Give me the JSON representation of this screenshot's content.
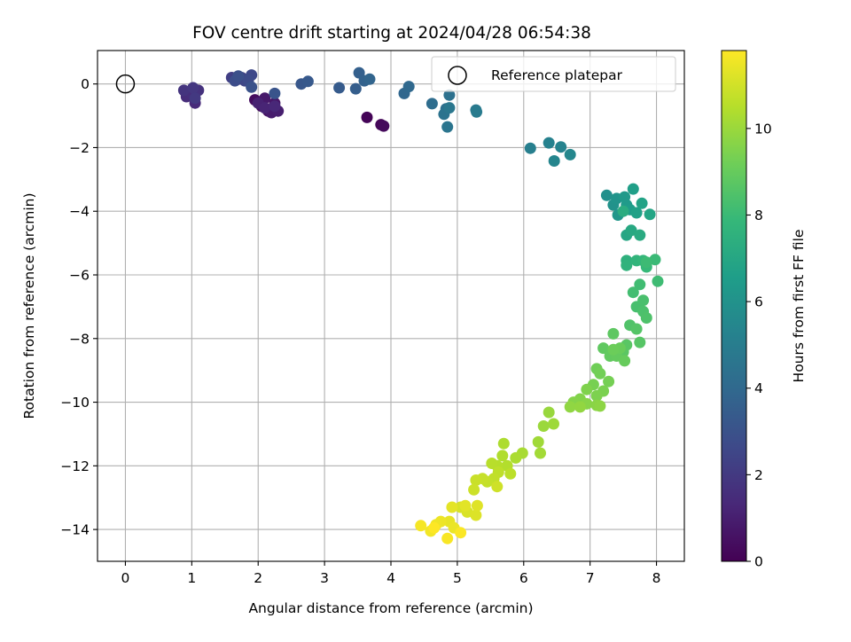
{
  "chart_data": {
    "type": "scatter",
    "title": "FOV centre drift starting at 2024/04/28 06:54:38",
    "xlabel": "Angular distance from reference (arcmin)",
    "ylabel": "Rotation from reference (arcmin)",
    "xlim": [
      -0.42,
      8.42
    ],
    "ylim": [
      -15.0,
      1.05
    ],
    "xticks": [
      0,
      1,
      2,
      3,
      4,
      5,
      6,
      7,
      8
    ],
    "yticks": [
      0,
      -2,
      -4,
      -6,
      -8,
      -10,
      -12,
      -14
    ],
    "xtick_labels": [
      "0",
      "1",
      "2",
      "3",
      "4",
      "5",
      "6",
      "7",
      "8"
    ],
    "ytick_labels": [
      "0",
      "−2",
      "−4",
      "−6",
      "−8",
      "−10",
      "−12",
      "−14"
    ],
    "grid": true,
    "legend": {
      "position": "upper-right",
      "entries": [
        "Reference platepar"
      ]
    },
    "reference_point": {
      "x": 0,
      "y": 0,
      "label": "Reference platepar"
    },
    "colorbar": {
      "label": "Hours from first FF file",
      "range": [
        0,
        11.8
      ],
      "ticks": [
        0,
        2,
        4,
        6,
        8,
        10
      ],
      "tick_labels": [
        "0",
        "2",
        "4",
        "6",
        "8",
        "10"
      ],
      "colormap": "viridis",
      "colors": [
        "#440154",
        "#482878",
        "#3e4989",
        "#31688e",
        "#26828e",
        "#1f9e89",
        "#35b779",
        "#6ece58",
        "#b5de2b",
        "#fde725"
      ]
    },
    "series": [
      {
        "values": [
          [
            3.64,
            -1.05,
            0.1
          ],
          [
            3.85,
            -1.28,
            0.2
          ],
          [
            3.89,
            -1.32,
            0.3
          ],
          [
            1.95,
            -0.5,
            0.4
          ],
          [
            2.05,
            -0.7,
            0.5
          ],
          [
            2.15,
            -0.85,
            0.6
          ],
          [
            2.25,
            -0.6,
            0.7
          ],
          [
            2.1,
            -0.45,
            0.8
          ],
          [
            2.2,
            -0.9,
            0.9
          ],
          [
            2.3,
            -0.85,
            1.0
          ],
          [
            2.0,
            -0.6,
            1.1
          ],
          [
            2.1,
            -0.75,
            1.2
          ],
          [
            2.25,
            -0.7,
            1.3
          ],
          [
            1.05,
            -0.6,
            1.4
          ],
          [
            0.92,
            -0.4,
            1.5
          ],
          [
            1.0,
            -0.3,
            1.6
          ],
          [
            1.1,
            -0.2,
            1.7
          ],
          [
            0.88,
            -0.2,
            1.8
          ],
          [
            1.02,
            -0.12,
            1.9
          ],
          [
            1.05,
            -0.45,
            2.0
          ],
          [
            1.6,
            0.2,
            2.2
          ],
          [
            1.7,
            0.15,
            2.3
          ],
          [
            1.75,
            0.2,
            2.4
          ],
          [
            1.8,
            0.1,
            2.5
          ],
          [
            1.9,
            0.28,
            2.6
          ],
          [
            1.85,
            0.12,
            2.7
          ],
          [
            1.65,
            0.1,
            2.8
          ],
          [
            1.7,
            0.25,
            2.9
          ],
          [
            1.9,
            -0.1,
            3.0
          ],
          [
            2.25,
            -0.3,
            3.1
          ],
          [
            2.65,
            0.0,
            3.2
          ],
          [
            2.75,
            0.08,
            3.3
          ],
          [
            3.22,
            -0.12,
            3.4
          ],
          [
            3.47,
            -0.15,
            3.5
          ],
          [
            3.52,
            0.35,
            3.6
          ],
          [
            3.6,
            0.1,
            3.7
          ],
          [
            3.68,
            0.15,
            3.8
          ],
          [
            4.2,
            -0.3,
            3.9
          ],
          [
            4.27,
            -0.08,
            4.0
          ],
          [
            4.62,
            -0.62,
            4.2
          ],
          [
            4.83,
            -0.78,
            4.3
          ],
          [
            4.88,
            -0.35,
            4.4
          ],
          [
            4.8,
            -0.95,
            4.5
          ],
          [
            4.85,
            -1.35,
            4.6
          ],
          [
            4.88,
            -0.75,
            4.7
          ],
          [
            5.28,
            -0.82,
            4.8
          ],
          [
            5.29,
            -0.88,
            4.9
          ],
          [
            6.1,
            -2.02,
            5.1
          ],
          [
            6.38,
            -1.85,
            5.2
          ],
          [
            6.56,
            -1.98,
            5.3
          ],
          [
            6.46,
            -2.42,
            5.4
          ],
          [
            6.7,
            -2.22,
            5.5
          ],
          [
            7.25,
            -3.5,
            5.9
          ],
          [
            7.35,
            -3.8,
            6.0
          ],
          [
            7.4,
            -3.6,
            6.1
          ],
          [
            7.42,
            -4.12,
            6.2
          ],
          [
            7.52,
            -3.55,
            6.3
          ],
          [
            7.55,
            -3.8,
            6.4
          ],
          [
            7.6,
            -3.95,
            6.5
          ],
          [
            7.65,
            -3.3,
            6.6
          ],
          [
            7.7,
            -4.05,
            6.7
          ],
          [
            7.78,
            -3.75,
            6.8
          ],
          [
            7.9,
            -4.1,
            6.9
          ],
          [
            7.55,
            -4.75,
            7.0
          ],
          [
            7.62,
            -4.6,
            7.1
          ],
          [
            7.75,
            -4.75,
            7.2
          ],
          [
            7.5,
            -4.0,
            7.3
          ],
          [
            7.55,
            -5.55,
            7.5
          ],
          [
            7.55,
            -5.7,
            7.6
          ],
          [
            7.7,
            -5.55,
            7.7
          ],
          [
            7.8,
            -5.55,
            7.8
          ],
          [
            7.85,
            -5.75,
            7.9
          ],
          [
            7.98,
            -5.52,
            8.0
          ],
          [
            7.85,
            -5.6,
            8.05
          ],
          [
            8.02,
            -6.2,
            8.1
          ],
          [
            7.75,
            -6.3,
            8.15
          ],
          [
            7.65,
            -6.55,
            8.2
          ],
          [
            7.7,
            -7.0,
            8.3
          ],
          [
            7.8,
            -6.8,
            8.35
          ],
          [
            7.8,
            -7.15,
            8.4
          ],
          [
            7.85,
            -7.35,
            8.45
          ],
          [
            7.6,
            -7.58,
            8.5
          ],
          [
            7.7,
            -7.7,
            8.6
          ],
          [
            7.75,
            -8.12,
            8.65
          ],
          [
            7.55,
            -8.2,
            8.7
          ],
          [
            7.5,
            -8.42,
            8.75
          ],
          [
            7.35,
            -7.85,
            8.8
          ],
          [
            7.2,
            -8.3,
            8.85
          ],
          [
            7.3,
            -8.55,
            8.9
          ],
          [
            7.4,
            -8.55,
            8.95
          ],
          [
            7.52,
            -8.7,
            9.0
          ],
          [
            7.45,
            -8.3,
            9.05
          ],
          [
            7.35,
            -8.35,
            9.1
          ],
          [
            7.1,
            -8.95,
            9.2
          ],
          [
            7.15,
            -9.1,
            9.25
          ],
          [
            7.28,
            -9.35,
            9.3
          ],
          [
            7.05,
            -9.45,
            9.35
          ],
          [
            7.2,
            -9.65,
            9.4
          ],
          [
            7.1,
            -9.8,
            9.45
          ],
          [
            6.95,
            -9.6,
            9.5
          ],
          [
            6.85,
            -9.9,
            9.55
          ],
          [
            6.75,
            -10.0,
            9.6
          ],
          [
            6.95,
            -10.05,
            9.65
          ],
          [
            7.1,
            -10.1,
            9.7
          ],
          [
            7.15,
            -10.12,
            9.75
          ],
          [
            6.7,
            -10.15,
            9.8
          ],
          [
            6.85,
            -10.15,
            9.85
          ],
          [
            6.38,
            -10.32,
            9.95
          ],
          [
            6.3,
            -10.75,
            10.0
          ],
          [
            6.45,
            -10.68,
            10.05
          ],
          [
            6.22,
            -11.25,
            10.1
          ],
          [
            6.25,
            -11.6,
            10.15
          ],
          [
            5.98,
            -11.6,
            10.25
          ],
          [
            5.88,
            -11.75,
            10.3
          ],
          [
            5.7,
            -11.3,
            10.35
          ],
          [
            5.68,
            -11.68,
            10.4
          ],
          [
            5.75,
            -12.0,
            10.45
          ],
          [
            5.6,
            -12.0,
            10.5
          ],
          [
            5.52,
            -11.92,
            10.55
          ],
          [
            5.8,
            -12.25,
            10.6
          ],
          [
            5.62,
            -12.2,
            10.65
          ],
          [
            5.55,
            -12.4,
            10.7
          ],
          [
            5.45,
            -12.5,
            10.75
          ],
          [
            5.38,
            -12.4,
            10.8
          ],
          [
            5.28,
            -12.45,
            10.85
          ],
          [
            5.25,
            -12.75,
            10.9
          ],
          [
            5.6,
            -12.65,
            10.95
          ],
          [
            5.05,
            -13.3,
            11.1
          ],
          [
            5.15,
            -13.45,
            11.15
          ],
          [
            5.28,
            -13.55,
            11.2
          ],
          [
            5.3,
            -13.25,
            11.25
          ],
          [
            5.12,
            -13.25,
            11.3
          ],
          [
            4.92,
            -13.3,
            11.35
          ],
          [
            4.88,
            -13.75,
            11.4
          ],
          [
            4.95,
            -13.95,
            11.45
          ],
          [
            4.75,
            -13.75,
            11.5
          ],
          [
            4.68,
            -13.85,
            11.55
          ],
          [
            4.6,
            -14.05,
            11.6
          ],
          [
            4.45,
            -13.88,
            11.65
          ],
          [
            4.85,
            -14.28,
            11.7
          ],
          [
            5.05,
            -14.1,
            11.75
          ],
          [
            4.65,
            -13.95,
            11.8
          ]
        ]
      }
    ]
  }
}
